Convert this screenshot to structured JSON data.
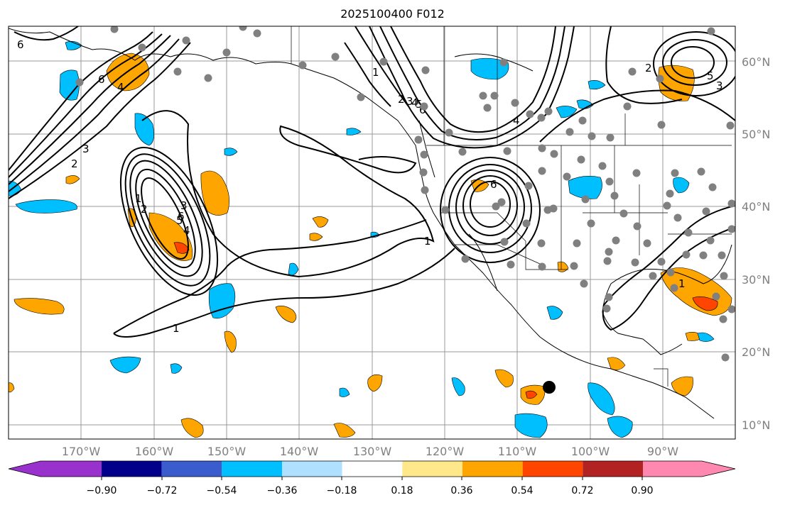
{
  "title": "2025100400 F012",
  "lon_ticks": [
    "170°W",
    "160°W",
    "150°W",
    "140°W",
    "130°W",
    "120°W",
    "110°W",
    "100°W",
    "90°W"
  ],
  "lat_ticks": [
    "10°N",
    "20°N",
    "30°N",
    "40°N",
    "50°N",
    "60°N"
  ],
  "colorbar": {
    "tick_labels": [
      "−0.90",
      "−0.72",
      "−0.54",
      "−0.36",
      "−0.18",
      "0.18",
      "0.36",
      "0.54",
      "0.72",
      "0.90"
    ],
    "colors": [
      "#9932cc",
      "#00008b",
      "#3a5ccc",
      "#00bfff",
      "#b0e0ff",
      "#ffffff",
      "#ffe88a",
      "#ffa500",
      "#ff4500",
      "#b22222",
      "#ff88b0"
    ],
    "extend": "both"
  },
  "contour_labels": [
    "6",
    "6",
    "4",
    "2",
    "3",
    "1",
    "1",
    "2",
    "3",
    "4",
    "5",
    "6",
    "1",
    "2",
    "3",
    "4",
    "5",
    "6",
    "2",
    "4",
    "6",
    "5",
    "3",
    "1",
    "1"
  ],
  "colors": {
    "contour": "#000000",
    "grid": "#999999",
    "station_dot": "#808080",
    "marker": "#000000"
  }
}
